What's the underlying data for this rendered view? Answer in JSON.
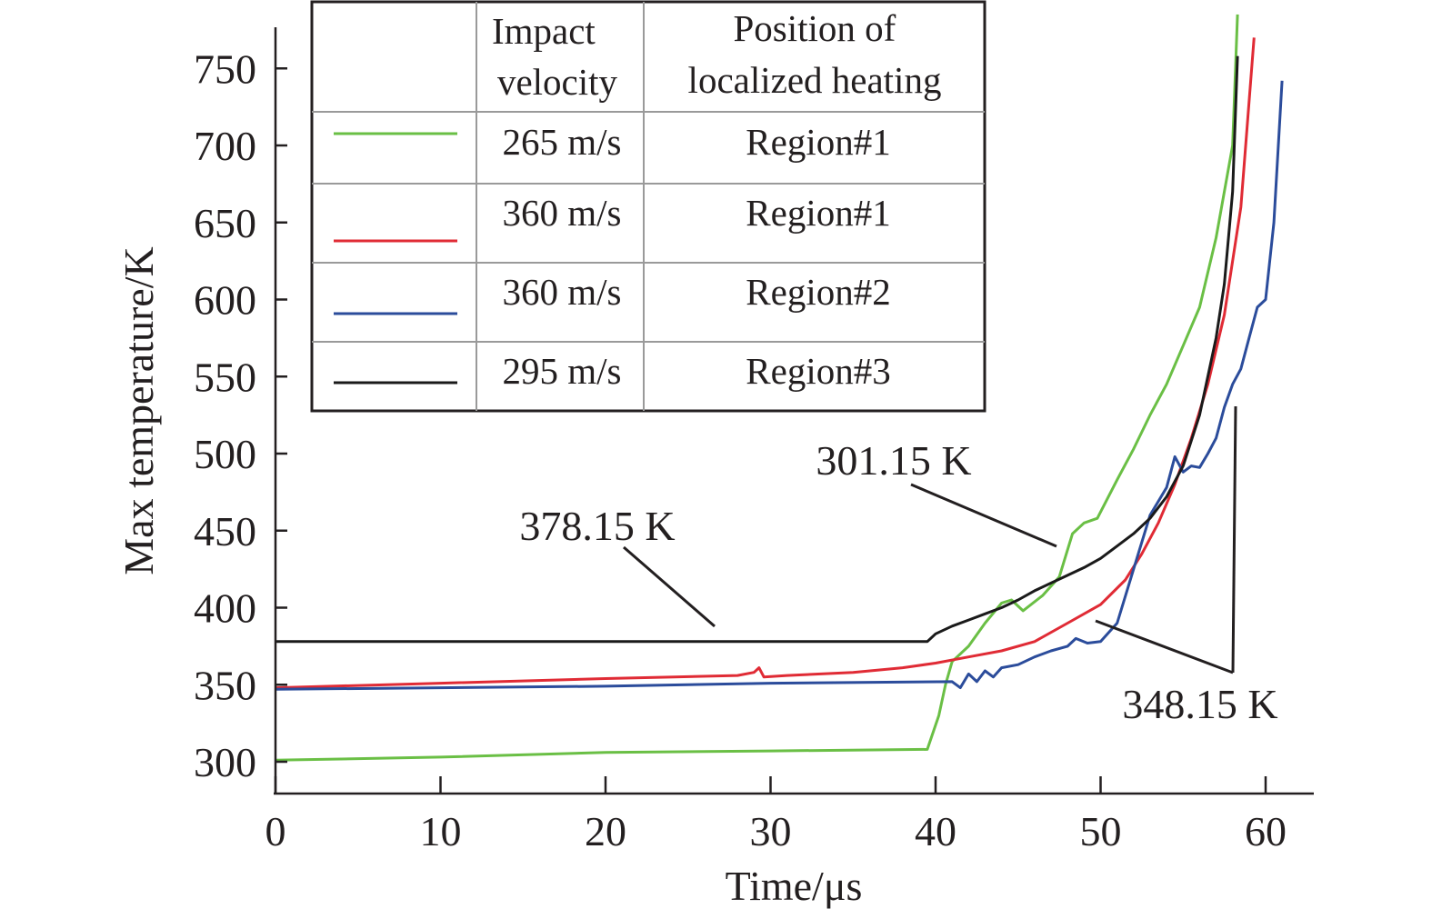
{
  "chart_data": {
    "type": "line",
    "xlabel": "Time/μs",
    "ylabel": "Max temperature/K",
    "xlim": [
      0,
      63
    ],
    "ylim": [
      285,
      780
    ],
    "xticks": [
      "0",
      "10",
      "20",
      "30",
      "40",
      "50",
      "60"
    ],
    "yticks": [
      "300",
      "350",
      "400",
      "450",
      "500",
      "550",
      "600",
      "650",
      "700",
      "750"
    ],
    "grid": false,
    "legend": {
      "placement": "top-left",
      "headers": [
        "Impact velocity",
        "Position of localized heating"
      ],
      "rows": [
        {
          "velocity": "265 m/s",
          "region": "Region#1"
        },
        {
          "velocity": "360 m/s",
          "region": "Region#1"
        },
        {
          "velocity": "360 m/s",
          "region": "Region#2"
        },
        {
          "velocity": "295 m/s",
          "region": "Region#3"
        }
      ]
    },
    "annotations": [
      "378.15 K",
      "301.15 K",
      "348.15 K"
    ],
    "series": [
      {
        "color": "#6abf45",
        "x": [
          0,
          10,
          20,
          30,
          39.5,
          40.2,
          40.6,
          41,
          42,
          43,
          44,
          44.6,
          45.3,
          46.5,
          47.5,
          48.3,
          49,
          49.8,
          51,
          52,
          53,
          54,
          55,
          56,
          57,
          58,
          58.3
        ],
        "y": [
          301,
          303,
          306,
          307,
          308,
          330,
          350,
          365,
          375,
          390,
          403,
          405,
          398,
          408,
          420,
          448,
          455,
          458,
          483,
          503,
          525,
          545,
          570,
          595,
          640,
          700,
          785
        ]
      },
      {
        "color": "#e02b35",
        "x": [
          0,
          10,
          20,
          28,
          29,
          29.3,
          29.6,
          31,
          35,
          38,
          40,
          42,
          44,
          46,
          48,
          50,
          51.5,
          52.5,
          53.5,
          54.5,
          55.5,
          56.5,
          57.5,
          58.5,
          59.3
        ],
        "y": [
          348,
          351,
          354,
          356,
          358,
          361,
          355,
          356,
          358,
          361,
          364,
          368,
          372,
          378,
          390,
          402,
          418,
          435,
          455,
          480,
          510,
          545,
          590,
          660,
          770
        ]
      },
      {
        "color": "#2b4c9b",
        "x": [
          0,
          10,
          20,
          30,
          41,
          41.5,
          42,
          42.5,
          43,
          43.5,
          44,
          45,
          46,
          47,
          48,
          48.5,
          49.2,
          50,
          51,
          52,
          53,
          54,
          54.5,
          55,
          55.5,
          56,
          56.5,
          57,
          57.5,
          58,
          58.5,
          59,
          59.5,
          60,
          60.5,
          61
        ],
        "y": [
          347,
          348,
          349,
          351,
          352,
          348,
          357,
          352,
          359,
          355,
          361,
          363,
          368,
          372,
          375,
          380,
          377,
          378,
          390,
          425,
          460,
          478,
          498,
          488,
          492,
          491,
          500,
          510,
          530,
          545,
          555,
          575,
          595,
          600,
          650,
          742
        ]
      },
      {
        "color": "#1a1a1a",
        "x": [
          0,
          10,
          20,
          30,
          39.5,
          40,
          41,
          42,
          43,
          44,
          45,
          46,
          47,
          48,
          49,
          50,
          51,
          52,
          53,
          54,
          55,
          56,
          57,
          57.5,
          58,
          58.3
        ],
        "y": [
          378,
          378,
          378,
          378,
          378,
          383,
          388,
          392,
          396,
          400,
          405,
          411,
          416,
          421,
          426,
          432,
          440,
          448,
          458,
          472,
          492,
          525,
          575,
          610,
          670,
          758
        ]
      }
    ]
  }
}
